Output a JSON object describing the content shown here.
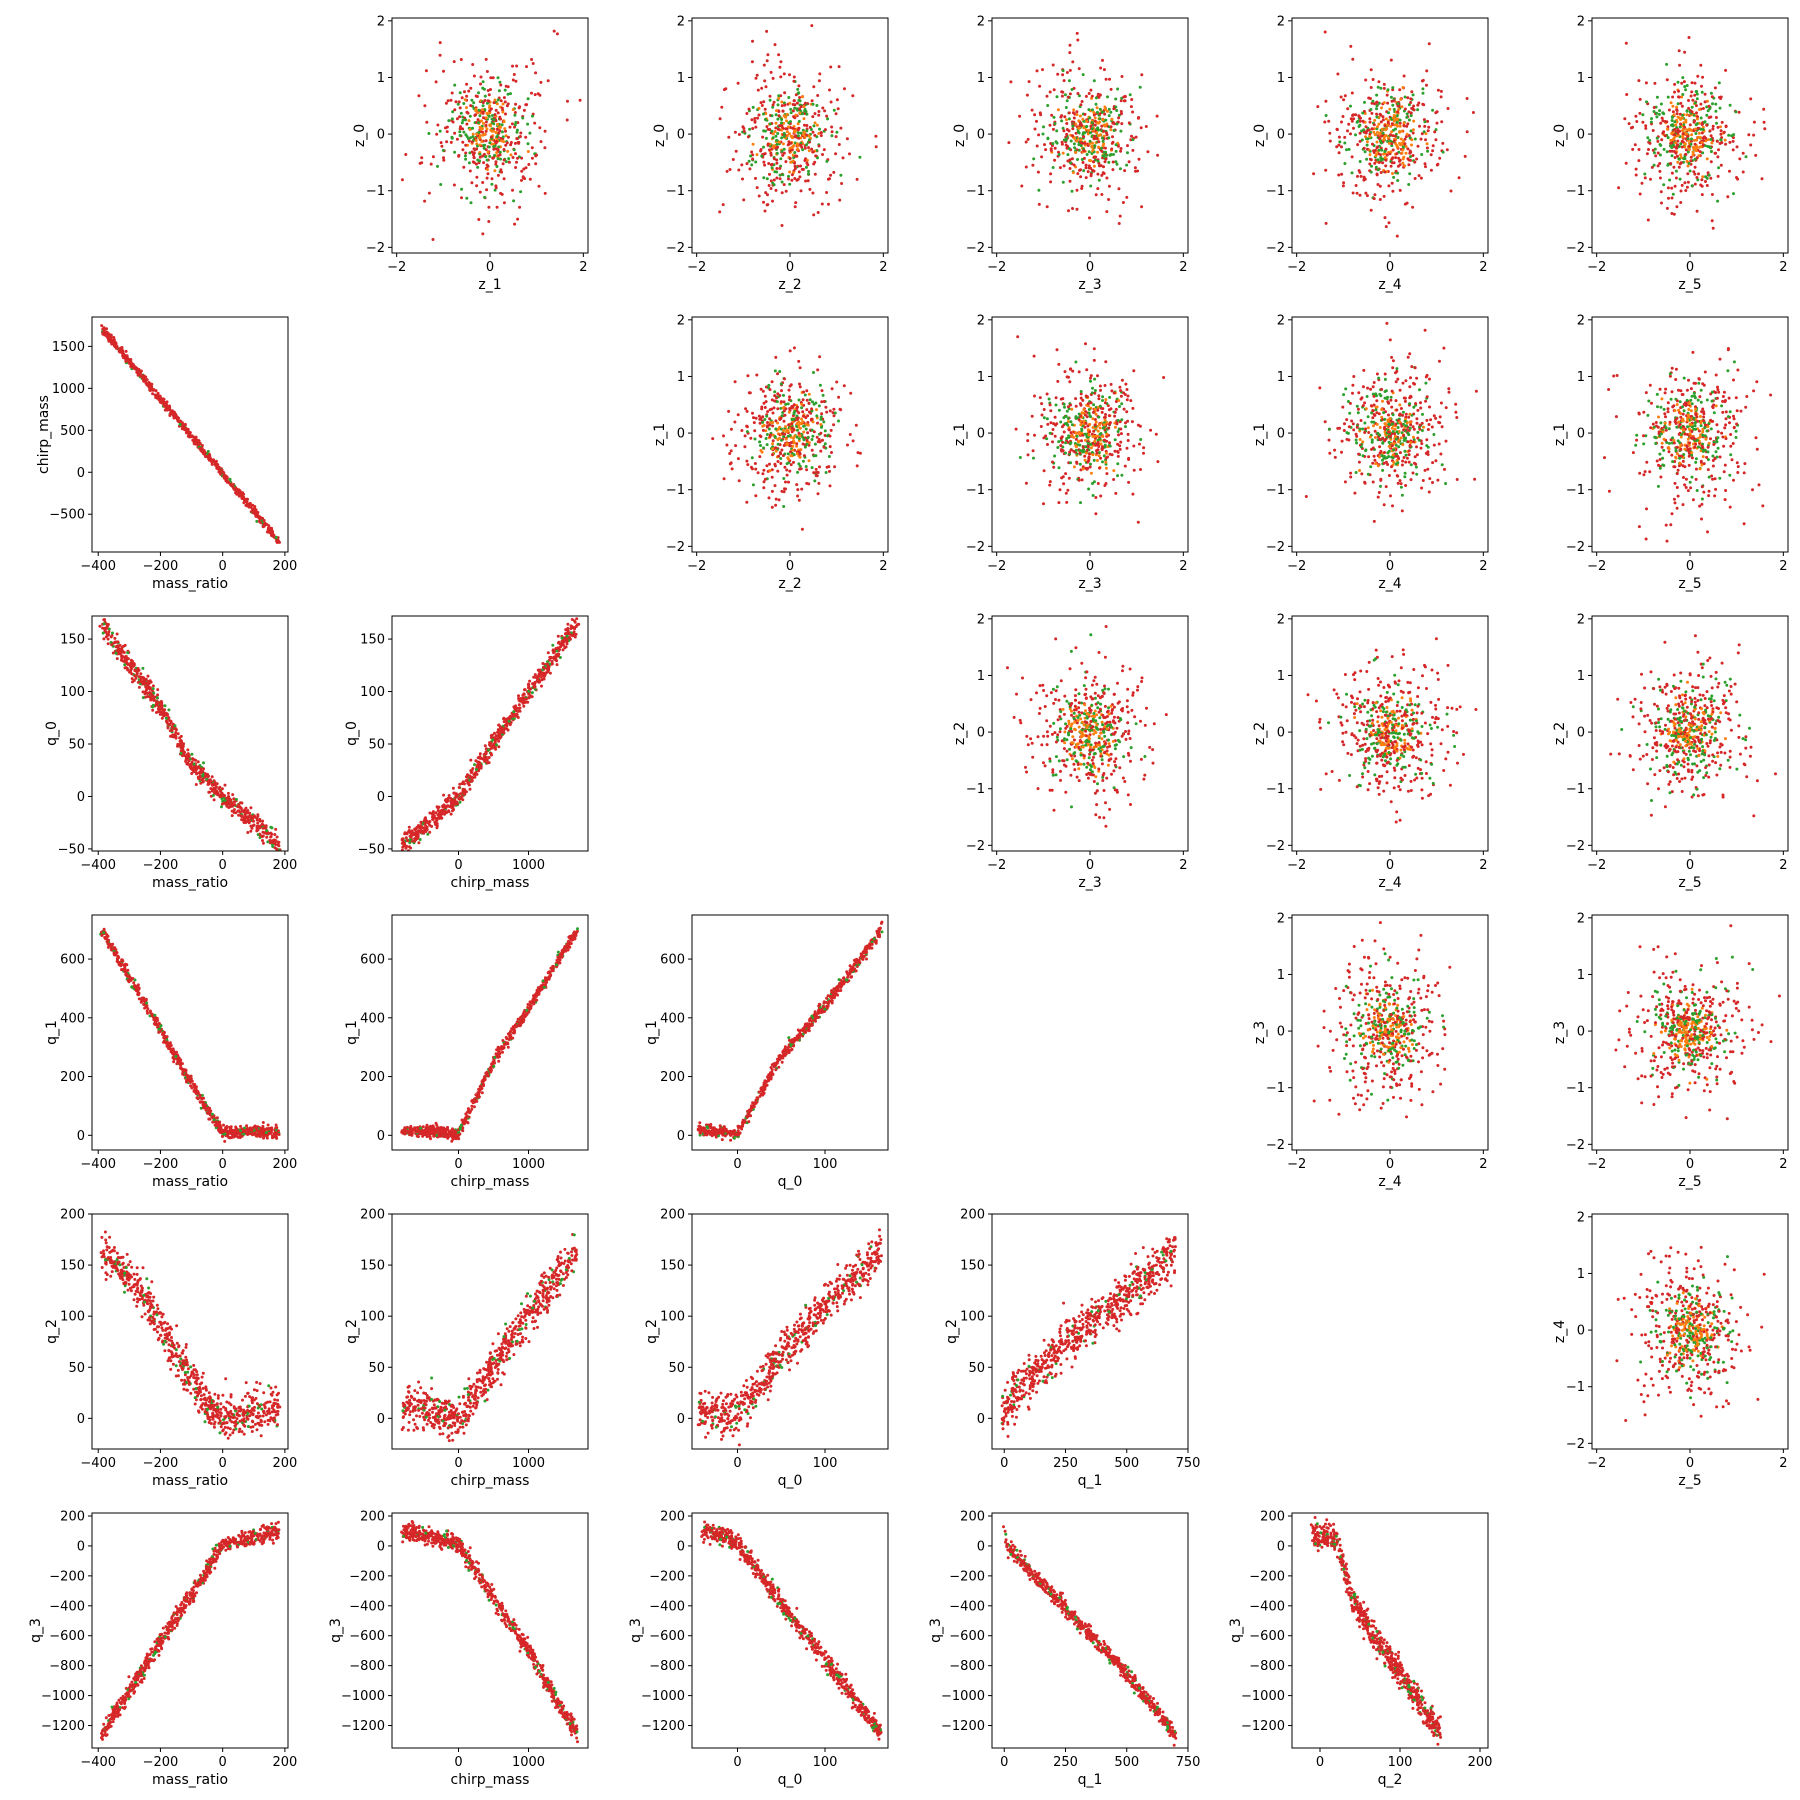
{
  "colors": {
    "series_red": "#d62728",
    "series_green": "#2ca02c",
    "series_orange": "#ff7f0e"
  },
  "chart_data": [
    {
      "type": "scatter",
      "row": 0,
      "col": 1,
      "xlabel": "z_1",
      "ylabel": "z_0",
      "xlim": [
        -2.1,
        2.1
      ],
      "ylim": [
        -2.1,
        2.05
      ],
      "xticks": [
        -2,
        0,
        2
      ],
      "yticks": [
        -2,
        -1,
        0,
        1,
        2
      ],
      "shape": "gauss",
      "r": 0.9,
      "points": 550
    },
    {
      "type": "scatter",
      "row": 0,
      "col": 2,
      "xlabel": "z_2",
      "ylabel": "z_0",
      "xlim": [
        -2.1,
        2.1
      ],
      "ylim": [
        -2.1,
        2.05
      ],
      "xticks": [
        -2,
        0,
        2
      ],
      "yticks": [
        -2,
        -1,
        0,
        1,
        2
      ],
      "shape": "gauss",
      "r": 0.9,
      "points": 550
    },
    {
      "type": "scatter",
      "row": 0,
      "col": 3,
      "xlabel": "z_3",
      "ylabel": "z_0",
      "xlim": [
        -2.1,
        2.1
      ],
      "ylim": [
        -2.1,
        2.05
      ],
      "xticks": [
        -2,
        0,
        2
      ],
      "yticks": [
        -2,
        -1,
        0,
        1,
        2
      ],
      "shape": "gauss",
      "r": 0.9,
      "points": 550
    },
    {
      "type": "scatter",
      "row": 0,
      "col": 4,
      "xlabel": "z_4",
      "ylabel": "z_0",
      "xlim": [
        -2.1,
        2.1
      ],
      "ylim": [
        -2.1,
        2.05
      ],
      "xticks": [
        -2,
        0,
        2
      ],
      "yticks": [
        -2,
        -1,
        0,
        1,
        2
      ],
      "shape": "gauss",
      "r": 0.9,
      "points": 550
    },
    {
      "type": "scatter",
      "row": 0,
      "col": 5,
      "xlabel": "z_5",
      "ylabel": "z_0",
      "xlim": [
        -2.1,
        2.1
      ],
      "ylim": [
        -2.1,
        2.05
      ],
      "xticks": [
        -2,
        0,
        2
      ],
      "yticks": [
        -2,
        -1,
        0,
        1,
        2
      ],
      "shape": "gauss",
      "r": 0.9,
      "points": 550
    },
    {
      "type": "scatter",
      "row": 1,
      "col": 0,
      "xlabel": "mass_ratio",
      "ylabel": "chirp_mass",
      "xlim": [
        -420,
        210
      ],
      "ylim": [
        -950,
        1850
      ],
      "xticks": [
        -400,
        -200,
        0,
        200
      ],
      "yticks": [
        -500,
        0,
        500,
        1000,
        1500
      ],
      "shape": "curve",
      "curve": [
        [
          -390,
          1720
        ],
        [
          180,
          -820
        ]
      ],
      "spread": 25,
      "points": 700
    },
    {
      "type": "scatter",
      "row": 1,
      "col": 2,
      "xlabel": "z_2",
      "ylabel": "z_1",
      "xlim": [
        -2.1,
        2.1
      ],
      "ylim": [
        -2.1,
        2.05
      ],
      "xticks": [
        -2,
        0,
        2
      ],
      "yticks": [
        -2,
        -1,
        0,
        1,
        2
      ],
      "shape": "gauss",
      "r": 0.9,
      "points": 550
    },
    {
      "type": "scatter",
      "row": 1,
      "col": 3,
      "xlabel": "z_3",
      "ylabel": "z_1",
      "xlim": [
        -2.1,
        2.1
      ],
      "ylim": [
        -2.1,
        2.05
      ],
      "xticks": [
        -2,
        0,
        2
      ],
      "yticks": [
        -2,
        -1,
        0,
        1,
        2
      ],
      "shape": "gauss",
      "r": 0.9,
      "points": 550
    },
    {
      "type": "scatter",
      "row": 1,
      "col": 4,
      "xlabel": "z_4",
      "ylabel": "z_1",
      "xlim": [
        -2.1,
        2.1
      ],
      "ylim": [
        -2.1,
        2.05
      ],
      "xticks": [
        -2,
        0,
        2
      ],
      "yticks": [
        -2,
        -1,
        0,
        1,
        2
      ],
      "shape": "gauss",
      "r": 0.9,
      "points": 550
    },
    {
      "type": "scatter",
      "row": 1,
      "col": 5,
      "xlabel": "z_5",
      "ylabel": "z_1",
      "xlim": [
        -2.1,
        2.1
      ],
      "ylim": [
        -2.1,
        2.05
      ],
      "xticks": [
        -2,
        0,
        2
      ],
      "yticks": [
        -2,
        -1,
        0,
        1,
        2
      ],
      "shape": "gauss",
      "r": 0.9,
      "points": 550
    },
    {
      "type": "scatter",
      "row": 2,
      "col": 0,
      "xlabel": "mass_ratio",
      "ylabel": "q_0",
      "xlim": [
        -420,
        210
      ],
      "ylim": [
        -52,
        172
      ],
      "xticks": [
        -400,
        -200,
        0,
        200
      ],
      "yticks": [
        -50,
        0,
        50,
        100,
        150
      ],
      "shape": "curve",
      "curve": [
        [
          -390,
          165
        ],
        [
          -200,
          85
        ],
        [
          -100,
          30
        ],
        [
          0,
          0
        ],
        [
          100,
          -25
        ],
        [
          180,
          -45
        ]
      ],
      "spread": 5,
      "points": 700
    },
    {
      "type": "scatter",
      "row": 2,
      "col": 1,
      "xlabel": "chirp_mass",
      "ylabel": "q_0",
      "xlim": [
        -950,
        1850
      ],
      "ylim": [
        -52,
        172
      ],
      "xticks": [
        0,
        1000
      ],
      "yticks": [
        -50,
        0,
        50,
        100,
        150
      ],
      "shape": "curve",
      "curve": [
        [
          -800,
          -45
        ],
        [
          -400,
          -25
        ],
        [
          0,
          0
        ],
        [
          500,
          50
        ],
        [
          1000,
          100
        ],
        [
          1700,
          165
        ]
      ],
      "spread": 5,
      "points": 700
    },
    {
      "type": "scatter",
      "row": 2,
      "col": 3,
      "xlabel": "z_3",
      "ylabel": "z_2",
      "xlim": [
        -2.1,
        2.1
      ],
      "ylim": [
        -2.1,
        2.05
      ],
      "xticks": [
        -2,
        0,
        2
      ],
      "yticks": [
        -2,
        -1,
        0,
        1,
        2
      ],
      "shape": "gauss",
      "r": 0.9,
      "points": 550
    },
    {
      "type": "scatter",
      "row": 2,
      "col": 4,
      "xlabel": "z_4",
      "ylabel": "z_2",
      "xlim": [
        -2.1,
        2.1
      ],
      "ylim": [
        -2.1,
        2.05
      ],
      "xticks": [
        -2,
        0,
        2
      ],
      "yticks": [
        -2,
        -1,
        0,
        1,
        2
      ],
      "shape": "gauss",
      "r": 0.9,
      "points": 550
    },
    {
      "type": "scatter",
      "row": 2,
      "col": 5,
      "xlabel": "z_5",
      "ylabel": "z_2",
      "xlim": [
        -2.1,
        2.1
      ],
      "ylim": [
        -2.1,
        2.05
      ],
      "xticks": [
        -2,
        0,
        2
      ],
      "yticks": [
        -2,
        -1,
        0,
        1,
        2
      ],
      "shape": "gauss",
      "r": 0.9,
      "points": 550
    },
    {
      "type": "scatter",
      "row": 3,
      "col": 0,
      "xlabel": "mass_ratio",
      "ylabel": "q_1",
      "xlim": [
        -420,
        210
      ],
      "ylim": [
        -50,
        750
      ],
      "xticks": [
        -400,
        -200,
        0,
        200
      ],
      "yticks": [
        0,
        200,
        400,
        600
      ],
      "shape": "curve",
      "curve": [
        [
          -390,
          700
        ],
        [
          -200,
          360
        ],
        [
          -100,
          170
        ],
        [
          0,
          10
        ],
        [
          100,
          15
        ],
        [
          180,
          10
        ]
      ],
      "spread": 10,
      "points": 700
    },
    {
      "type": "scatter",
      "row": 3,
      "col": 1,
      "xlabel": "chirp_mass",
      "ylabel": "q_1",
      "xlim": [
        -950,
        1850
      ],
      "ylim": [
        -50,
        750
      ],
      "xticks": [
        0,
        1000
      ],
      "yticks": [
        0,
        200,
        400,
        600
      ],
      "shape": "curve",
      "curve": [
        [
          -800,
          15
        ],
        [
          -400,
          15
        ],
        [
          0,
          5
        ],
        [
          500,
          250
        ],
        [
          1000,
          430
        ],
        [
          1700,
          700
        ]
      ],
      "spread": 10,
      "points": 700
    },
    {
      "type": "scatter",
      "row": 3,
      "col": 2,
      "xlabel": "q_0",
      "ylabel": "q_1",
      "xlim": [
        -52,
        172
      ],
      "ylim": [
        -50,
        750
      ],
      "xticks": [
        0,
        100
      ],
      "yticks": [
        0,
        200,
        400,
        600
      ],
      "shape": "curve",
      "curve": [
        [
          -45,
          15
        ],
        [
          -20,
          15
        ],
        [
          0,
          5
        ],
        [
          50,
          270
        ],
        [
          100,
          440
        ],
        [
          165,
          700
        ]
      ],
      "spread": 10,
      "points": 700
    },
    {
      "type": "scatter",
      "row": 3,
      "col": 4,
      "xlabel": "z_4",
      "ylabel": "z_3",
      "xlim": [
        -2.1,
        2.1
      ],
      "ylim": [
        -2.1,
        2.05
      ],
      "xticks": [
        -2,
        0,
        2
      ],
      "yticks": [
        -2,
        -1,
        0,
        1,
        2
      ],
      "shape": "gauss",
      "r": 0.9,
      "points": 550
    },
    {
      "type": "scatter",
      "row": 3,
      "col": 5,
      "xlabel": "z_5",
      "ylabel": "z_3",
      "xlim": [
        -2.1,
        2.1
      ],
      "ylim": [
        -2.1,
        2.05
      ],
      "xticks": [
        -2,
        0,
        2
      ],
      "yticks": [
        -2,
        -1,
        0,
        1,
        2
      ],
      "shape": "gauss",
      "r": 0.9,
      "points": 550
    },
    {
      "type": "scatter",
      "row": 4,
      "col": 0,
      "xlabel": "mass_ratio",
      "ylabel": "q_2",
      "xlim": [
        -420,
        210
      ],
      "ylim": [
        -30,
        200
      ],
      "xticks": [
        -400,
        -200,
        0,
        200
      ],
      "yticks": [
        0,
        50,
        100,
        150,
        200
      ],
      "shape": "curve",
      "curve": [
        [
          -390,
          165
        ],
        [
          -250,
          120
        ],
        [
          -150,
          60
        ],
        [
          -50,
          15
        ],
        [
          0,
          0
        ],
        [
          100,
          5
        ],
        [
          180,
          10
        ]
      ],
      "spread": 10,
      "points": 700
    },
    {
      "type": "scatter",
      "row": 4,
      "col": 1,
      "xlabel": "chirp_mass",
      "ylabel": "q_2",
      "xlim": [
        -950,
        1850
      ],
      "ylim": [
        -30,
        200
      ],
      "xticks": [
        0,
        1000
      ],
      "yticks": [
        0,
        50,
        100,
        150,
        200
      ],
      "shape": "curve",
      "curve": [
        [
          -800,
          10
        ],
        [
          -400,
          10
        ],
        [
          0,
          -5
        ],
        [
          500,
          50
        ],
        [
          1000,
          100
        ],
        [
          1700,
          165
        ]
      ],
      "spread": 10,
      "points": 700
    },
    {
      "type": "scatter",
      "row": 4,
      "col": 2,
      "xlabel": "q_0",
      "ylabel": "q_2",
      "xlim": [
        -52,
        172
      ],
      "ylim": [
        -30,
        200
      ],
      "xticks": [
        0,
        100
      ],
      "yticks": [
        0,
        50,
        100,
        150,
        200
      ],
      "shape": "curve",
      "curve": [
        [
          -45,
          5
        ],
        [
          -20,
          5
        ],
        [
          0,
          5
        ],
        [
          40,
          50
        ],
        [
          100,
          110
        ],
        [
          165,
          165
        ]
      ],
      "spread": 10,
      "points": 700
    },
    {
      "type": "scatter",
      "row": 4,
      "col": 3,
      "xlabel": "q_1",
      "ylabel": "q_2",
      "xlim": [
        -50,
        750
      ],
      "ylim": [
        -30,
        200
      ],
      "xticks": [
        0,
        250,
        500,
        750
      ],
      "yticks": [
        0,
        50,
        100,
        150,
        200
      ],
      "shape": "curve",
      "curve": [
        [
          -10,
          0
        ],
        [
          50,
          25
        ],
        [
          250,
          75
        ],
        [
          500,
          120
        ],
        [
          700,
          165
        ]
      ],
      "spread": 11,
      "points": 700
    },
    {
      "type": "scatter",
      "row": 4,
      "col": 5,
      "xlabel": "z_5",
      "ylabel": "z_4",
      "xlim": [
        -2.1,
        2.1
      ],
      "ylim": [
        -2.1,
        2.05
      ],
      "xticks": [
        -2,
        0,
        2
      ],
      "yticks": [
        -2,
        -1,
        0,
        1,
        2
      ],
      "shape": "gauss",
      "r": 0.9,
      "points": 550
    },
    {
      "type": "scatter",
      "row": 5,
      "col": 0,
      "xlabel": "mass_ratio",
      "ylabel": "q_3",
      "xlim": [
        -420,
        210
      ],
      "ylim": [
        -1350,
        220
      ],
      "xticks": [
        -400,
        -200,
        0,
        200
      ],
      "yticks": [
        -1200,
        -1000,
        -800,
        -600,
        -400,
        -200,
        0,
        200
      ],
      "shape": "curve",
      "curve": [
        [
          -390,
          -1270
        ],
        [
          -200,
          -640
        ],
        [
          -100,
          -320
        ],
        [
          0,
          10
        ],
        [
          100,
          60
        ],
        [
          180,
          100
        ]
      ],
      "spread": 30,
      "points": 700
    },
    {
      "type": "scatter",
      "row": 5,
      "col": 1,
      "xlabel": "chirp_mass",
      "ylabel": "q_3",
      "xlim": [
        -950,
        1850
      ],
      "ylim": [
        -1350,
        220
      ],
      "xticks": [
        0,
        1000
      ],
      "yticks": [
        -1200,
        -1000,
        -800,
        -600,
        -400,
        -200,
        0,
        200
      ],
      "shape": "curve",
      "curve": [
        [
          -800,
          100
        ],
        [
          -400,
          60
        ],
        [
          0,
          20
        ],
        [
          500,
          -350
        ],
        [
          1000,
          -700
        ],
        [
          1700,
          -1270
        ]
      ],
      "spread": 30,
      "points": 700
    },
    {
      "type": "scatter",
      "row": 5,
      "col": 2,
      "xlabel": "q_0",
      "ylabel": "q_3",
      "xlim": [
        -52,
        172
      ],
      "ylim": [
        -1350,
        220
      ],
      "xticks": [
        0,
        100
      ],
      "yticks": [
        -1200,
        -1000,
        -800,
        -600,
        -400,
        -200,
        0,
        200
      ],
      "shape": "curve",
      "curve": [
        [
          -40,
          110
        ],
        [
          0,
          20
        ],
        [
          50,
          -380
        ],
        [
          100,
          -760
        ],
        [
          165,
          -1270
        ]
      ],
      "spread": 30,
      "points": 700
    },
    {
      "type": "scatter",
      "row": 5,
      "col": 3,
      "xlabel": "q_1",
      "ylabel": "q_3",
      "xlim": [
        -50,
        750
      ],
      "ylim": [
        -1350,
        220
      ],
      "xticks": [
        0,
        250,
        500,
        750
      ],
      "yticks": [
        -1200,
        -1000,
        -800,
        -600,
        -400,
        -200,
        0,
        200
      ],
      "shape": "curve",
      "curve": [
        [
          0,
          130
        ],
        [
          10,
          0
        ],
        [
          250,
          -420
        ],
        [
          500,
          -850
        ],
        [
          700,
          -1270
        ]
      ],
      "spread": 25,
      "points": 700
    },
    {
      "type": "scatter",
      "row": 5,
      "col": 4,
      "xlabel": "q_2",
      "ylabel": "q_3",
      "xlim": [
        -35,
        210
      ],
      "ylim": [
        -1350,
        220
      ],
      "xticks": [
        0,
        100,
        200
      ],
      "yticks": [
        -1200,
        -1000,
        -800,
        -600,
        -400,
        -200,
        0,
        200
      ],
      "shape": "curve",
      "curve": [
        [
          -10,
          80
        ],
        [
          20,
          50
        ],
        [
          40,
          -350
        ],
        [
          80,
          -700
        ],
        [
          150,
          -1250
        ]
      ],
      "spread": 45,
      "points": 700
    }
  ]
}
